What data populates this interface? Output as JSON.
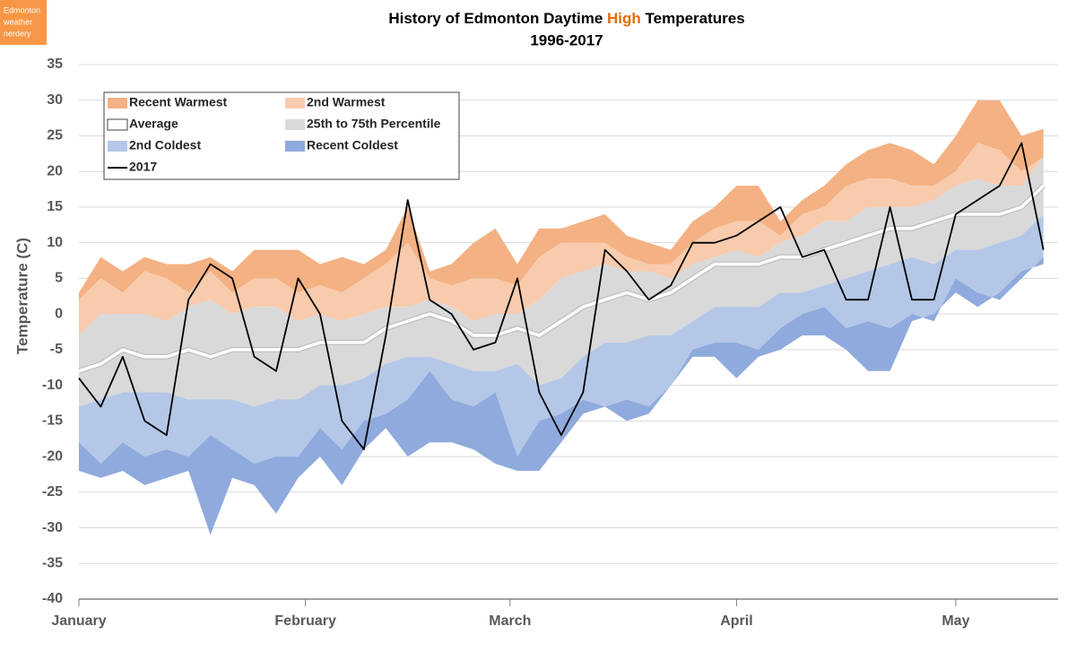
{
  "badge": [
    "Edmonton",
    "weather",
    "nerdery"
  ],
  "chart_data": {
    "type": "band-area",
    "title": [
      "History of Edmonton Daytime ",
      "High",
      " Temperatures"
    ],
    "subtitle": "1996-2017",
    "y_label": "Temperature (C)",
    "x": [
      0,
      3,
      6,
      9,
      12,
      15,
      18,
      21,
      24,
      27,
      30,
      33,
      36,
      39,
      42,
      45,
      48,
      51,
      54,
      57,
      60,
      63,
      66,
      69,
      72,
      75,
      78,
      81,
      84,
      87,
      90,
      93,
      96,
      99,
      102,
      105,
      108,
      111,
      114,
      117,
      120,
      123,
      126,
      129,
      132
    ],
    "xlim": [
      0,
      134
    ],
    "xticks": [
      {
        "value": 0,
        "label": "January"
      },
      {
        "value": 31,
        "label": "February"
      },
      {
        "value": 59,
        "label": "March"
      },
      {
        "value": 90,
        "label": "April"
      },
      {
        "value": 120,
        "label": "May"
      }
    ],
    "ylim": [
      -40,
      35
    ],
    "yticks": [
      -40,
      -35,
      -30,
      -25,
      -20,
      -15,
      -10,
      -5,
      0,
      5,
      10,
      15,
      20,
      25,
      30,
      35
    ],
    "grid": true,
    "series": [
      {
        "name": "Recent Warmest",
        "mark": "area",
        "color": "#f4b183",
        "values": [
          3,
          8,
          6,
          8,
          7,
          7,
          8,
          6,
          9,
          9,
          9,
          7,
          8,
          7,
          9,
          15,
          6,
          7,
          10,
          12,
          7,
          12,
          12,
          13,
          14,
          11,
          10,
          9,
          13,
          15,
          18,
          18,
          13,
          16,
          18,
          21,
          23,
          24,
          23,
          21,
          25,
          30,
          30,
          25,
          26
        ]
      },
      {
        "name": "2nd Warmest",
        "mark": "area",
        "color": "#f8cbad",
        "values": [
          2,
          5,
          3,
          6,
          5,
          3,
          6,
          3,
          5,
          5,
          3,
          4,
          3,
          5,
          7,
          10,
          5,
          4,
          5,
          5,
          4,
          8,
          10,
          10,
          10,
          8,
          7,
          7,
          10,
          12,
          13,
          13,
          11,
          14,
          15,
          18,
          19,
          19,
          18,
          18,
          20,
          24,
          23,
          20,
          22
        ]
      },
      {
        "name": "Average",
        "mark": "line",
        "color": "#ffffff",
        "values": [
          -8,
          -7,
          -5,
          -6,
          -6,
          -5,
          -6,
          -5,
          -5,
          -5,
          -5,
          -4,
          -4,
          -4,
          -2,
          -1,
          0,
          -1,
          -3,
          -3,
          -2,
          -3,
          -1,
          1,
          2,
          3,
          2,
          3,
          5,
          7,
          7,
          7,
          8,
          8,
          9,
          10,
          11,
          12,
          12,
          13,
          14,
          14,
          14,
          15,
          18
        ]
      },
      {
        "name": "25th to 75th Percentile",
        "mark": "area",
        "color": "#d9d9d9",
        "values": [
          -3,
          0,
          0,
          0,
          -1,
          1,
          2,
          0,
          1,
          1,
          -1,
          0,
          -1,
          0,
          1,
          1,
          2,
          1,
          -1,
          0,
          0,
          2,
          5,
          6,
          7,
          6,
          6,
          5,
          7,
          8,
          9,
          8,
          10,
          11,
          13,
          13,
          15,
          15,
          15,
          16,
          18,
          19,
          18,
          18,
          22
        ],
        "low_values": [
          -13,
          -12,
          -11,
          -11,
          -11,
          -12,
          -12,
          -12,
          -13,
          -12,
          -12,
          -10,
          -10,
          -9,
          -7,
          -6,
          -6,
          -7,
          -8,
          -8,
          -7,
          -10,
          -9,
          -6,
          -4,
          -4,
          -3,
          -3,
          -1,
          1,
          1,
          1,
          3,
          3,
          4,
          5,
          6,
          7,
          8,
          7,
          9,
          9,
          10,
          11,
          14
        ]
      },
      {
        "name": "2nd Coldest",
        "mark": "area",
        "color": "#b4c7e7",
        "values": [
          -18,
          -21,
          -18,
          -20,
          -19,
          -20,
          -17,
          -19,
          -21,
          -20,
          -20,
          -16,
          -19,
          -15,
          -14,
          -12,
          -8,
          -12,
          -13,
          -11,
          -20,
          -15,
          -14,
          -12,
          -13,
          -12,
          -13,
          -10,
          -5,
          -4,
          -4,
          -5,
          -2,
          0,
          1,
          -2,
          -1,
          -2,
          0,
          -1,
          5,
          3,
          2,
          5,
          8
        ]
      },
      {
        "name": "Recent Coldest",
        "mark": "area",
        "color": "#8faadc",
        "values": [
          -22,
          -23,
          -22,
          -24,
          -23,
          -22,
          -31,
          -23,
          -24,
          -28,
          -23,
          -20,
          -24,
          -19,
          -16,
          -20,
          -18,
          -18,
          -19,
          -21,
          -22,
          -22,
          -18,
          -14,
          -13,
          -15,
          -14,
          -10,
          -6,
          -6,
          -9,
          -6,
          -5,
          -3,
          -3,
          -5,
          -8,
          -8,
          -1,
          0,
          3,
          1,
          3,
          6,
          7
        ]
      },
      {
        "name": "2017",
        "mark": "line",
        "color": "#000000",
        "values": [
          -9,
          -13,
          -6,
          -15,
          -17,
          2,
          7,
          5,
          -6,
          -8,
          5,
          0,
          -15,
          -19,
          -3,
          16,
          2,
          0,
          -5,
          -4,
          5,
          -11,
          -17,
          -11,
          9,
          6,
          2,
          4,
          10,
          10,
          11,
          13,
          15,
          8,
          9,
          2,
          2,
          15,
          2,
          2,
          14,
          16,
          18,
          24,
          9
        ]
      }
    ]
  }
}
